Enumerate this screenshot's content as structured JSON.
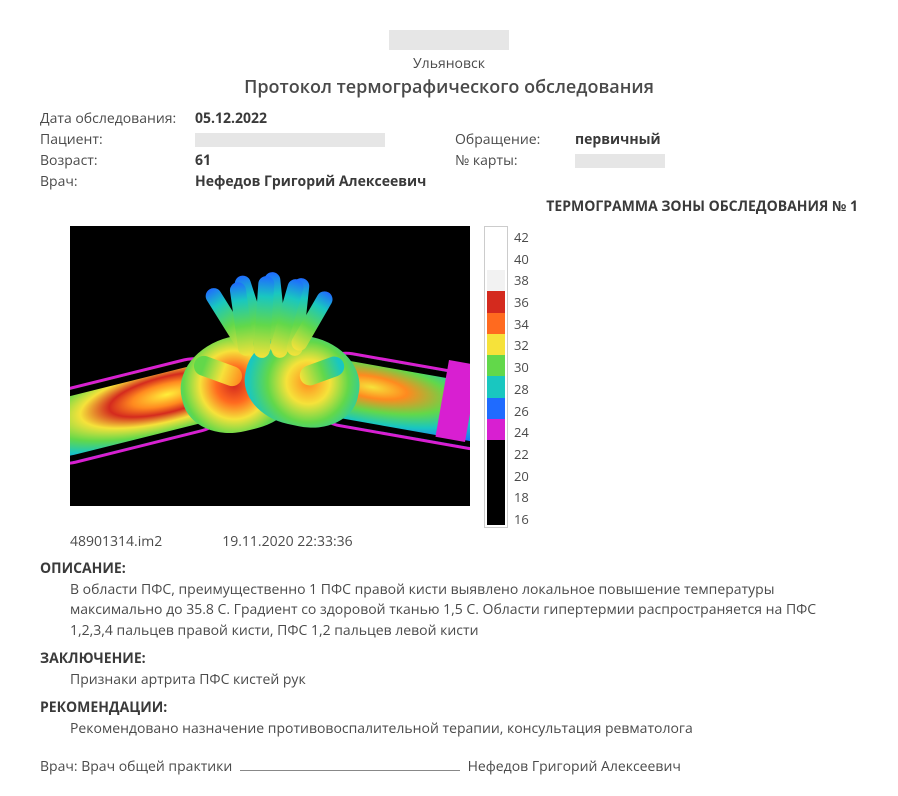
{
  "header": {
    "city": "Ульяновск",
    "title": "Протокол термографического обследования"
  },
  "meta": {
    "date_label": "Дата обследования:",
    "date_value": "05.12.2022",
    "patient_label": "Пациент:",
    "visit_label": "Обращение:",
    "visit_value": "первичный",
    "age_label": "Возраст:",
    "age_value": "61",
    "card_label": "№ карты:",
    "doctor_label": "Врач:",
    "doctor_value": "Нефедов Григорий Алексеевич"
  },
  "thermogram": {
    "section_title": "ТЕРМОГРАММА ЗОНЫ ОБСЛЕДОВАНИЯ № 1",
    "file_name": "48901314.im2",
    "timestamp": "19.11.2020 22:33:36",
    "scale": {
      "ticks": [
        "42",
        "40",
        "38",
        "36",
        "34",
        "32",
        "30",
        "28",
        "26",
        "24",
        "22",
        "20",
        "18",
        "16"
      ],
      "colors_top_to_bottom": [
        "#ffffff",
        "#f2f2f2",
        "#d42a1e",
        "#ff6a1f",
        "#f6e23a",
        "#62d84a",
        "#19c7c0",
        "#1f6bff",
        "#d81fd1",
        "#000000",
        "#000000",
        "#000000",
        "#000000"
      ]
    },
    "image_bg": "#000000"
  },
  "sections": {
    "description_head": "ОПИСАНИЕ:",
    "description_body": "В области ПФС, преимущественно 1 ПФС правой кисти выявлено локальное повышение температуры максимально до 35.8 С. Градиент со здоровой тканью 1,5 С. Области гипертермии распространяется на ПФС 1,2,3,4 пальцев правой кисти, ПФС 1,2 пальцев левой кисти",
    "conclusion_head": "ЗАКЛЮЧЕНИЕ:",
    "conclusion_body": "Признаки артрита ПФС кистей рук",
    "recommend_head": "РЕКОМЕНДАЦИИ:",
    "recommend_body": "Рекомендовано назначение противовоспалительной терапии, консультация ревматолога"
  },
  "signature": {
    "prefix": "Врач: Врач общей практики",
    "name": "Нефедов Григорий Алексеевич"
  }
}
